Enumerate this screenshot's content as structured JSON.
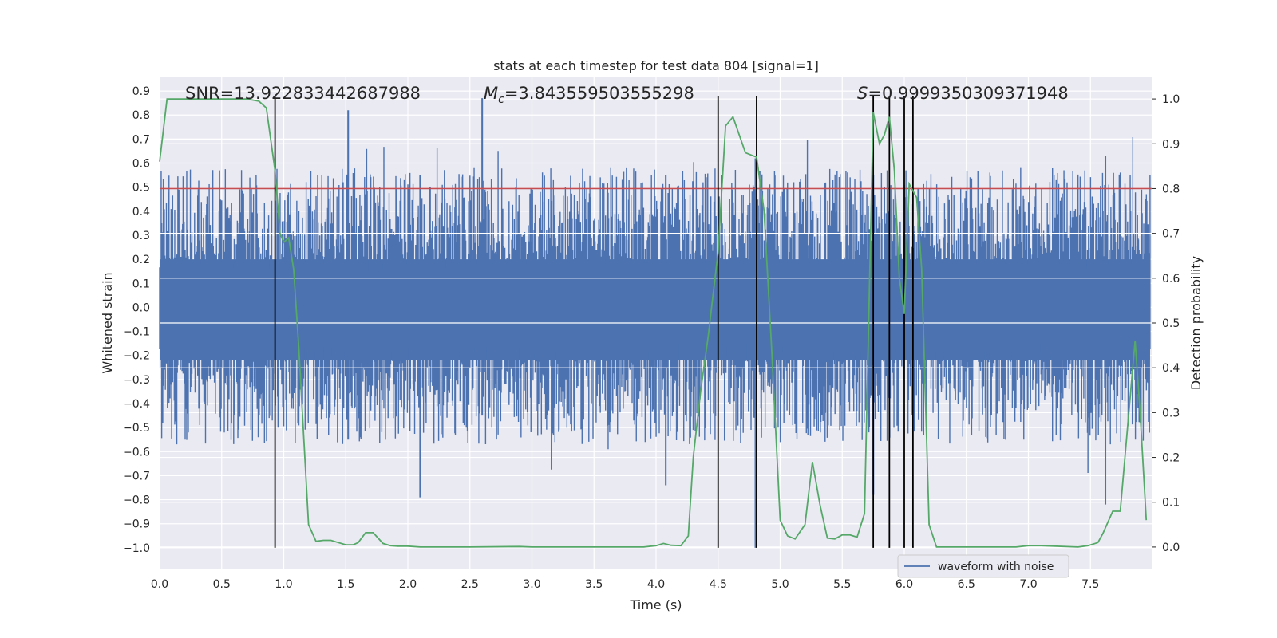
{
  "chart_data": {
    "type": "line",
    "title": "stats at each timestep for test data 804 [signal=1]",
    "xlabel": "Time (s)",
    "ylabel": "Whitened strain",
    "y2label": "Detection probability",
    "xlim": [
      0.0,
      8.0
    ],
    "ylim": [
      -1.09,
      0.96
    ],
    "y2lim": [
      -0.05,
      1.05
    ],
    "xticks": [
      "0.0",
      "0.5",
      "1.0",
      "1.5",
      "2.0",
      "2.5",
      "3.0",
      "3.5",
      "4.0",
      "4.5",
      "5.0",
      "5.5",
      "6.0",
      "6.5",
      "7.0",
      "7.5"
    ],
    "yticks": [
      "0.9",
      "0.8",
      "0.7",
      "0.6",
      "0.5",
      "0.4",
      "0.3",
      "0.2",
      "0.1",
      "0.0",
      "−0.1",
      "−0.2",
      "−0.3",
      "−0.4",
      "−0.5",
      "−0.6",
      "−0.7",
      "−0.8",
      "−0.9",
      "−1.0"
    ],
    "y2ticks": [
      "1.0",
      "0.9",
      "0.8",
      "0.7",
      "0.6",
      "0.5",
      "0.4",
      "0.3",
      "0.2",
      "0.1",
      "0.0"
    ],
    "grid": true,
    "legend_placement": "lower-right",
    "annotations": {
      "snr": "SNR=13.922833442687988",
      "mc_symbol": "M",
      "mc_sub": "c",
      "mc_value": "=3.843559503555298",
      "s_symbol": "S",
      "s_value": "=0.9999350309371948"
    },
    "threshold": {
      "axis": "right",
      "value": 0.8,
      "color": "#c44e52"
    },
    "vertical_markers": [
      0.93,
      4.5,
      4.81,
      5.75,
      5.88,
      6.0,
      6.07
    ],
    "vertical_marker_range": [
      -1.0,
      0.88
    ],
    "waveform_envelope_peaks": [
      {
        "x": 1.52,
        "top": 0.82,
        "bottom": -0.55
      },
      {
        "x": 2.1,
        "top": 0.55,
        "bottom": -0.79
      },
      {
        "x": 2.6,
        "top": 0.87,
        "bottom": -0.45
      },
      {
        "x": 4.08,
        "top": 0.55,
        "bottom": -0.74
      },
      {
        "x": 4.8,
        "top": 0.62,
        "bottom": -1.0
      },
      {
        "x": 5.75,
        "top": 0.55,
        "bottom": -0.78
      },
      {
        "x": 7.62,
        "top": 0.63,
        "bottom": -0.82
      }
    ],
    "series": [
      {
        "name": "waveform with noise",
        "axis": "left",
        "color": "#4c72b0",
        "typical_range": [
          -0.45,
          0.5
        ]
      },
      {
        "axis": "right",
        "color": "#55a868",
        "x": [
          0.0,
          0.06,
          0.12,
          0.2,
          0.3,
          0.4,
          0.5,
          0.6,
          0.7,
          0.8,
          0.86,
          0.93,
          0.97,
          1.0,
          1.04,
          1.08,
          1.12,
          1.2,
          1.26,
          1.32,
          1.38,
          1.44,
          1.5,
          1.56,
          1.6,
          1.66,
          1.72,
          1.8,
          1.86,
          1.92,
          2.0,
          2.1,
          2.5,
          2.9,
          3.0,
          3.5,
          3.9,
          4.0,
          4.06,
          4.12,
          4.2,
          4.26,
          4.3,
          4.36,
          4.42,
          4.5,
          4.56,
          4.62,
          4.72,
          4.81,
          4.87,
          4.93,
          5.0,
          5.06,
          5.12,
          5.2,
          5.26,
          5.32,
          5.38,
          5.44,
          5.5,
          5.56,
          5.62,
          5.68,
          5.75,
          5.8,
          5.84,
          5.88,
          5.92,
          5.96,
          6.0,
          6.04,
          6.1,
          6.14,
          6.2,
          6.26,
          6.34,
          6.5,
          6.9,
          7.0,
          7.1,
          7.4,
          7.48,
          7.56,
          7.6,
          7.68,
          7.74,
          7.8,
          7.86,
          7.9,
          7.95
        ],
        "values": [
          0.86,
          1.0,
          1.0,
          1.0,
          1.0,
          1.0,
          1.0,
          1.0,
          1.0,
          0.995,
          0.98,
          0.84,
          0.7,
          0.68,
          0.69,
          0.62,
          0.45,
          0.05,
          0.013,
          0.015,
          0.015,
          0.01,
          0.005,
          0.005,
          0.01,
          0.032,
          0.032,
          0.008,
          0.003,
          0.002,
          0.002,
          0.0,
          0.0,
          0.001,
          0.0,
          0.0,
          0.0,
          0.003,
          0.008,
          0.004,
          0.003,
          0.025,
          0.2,
          0.35,
          0.47,
          0.66,
          0.94,
          0.96,
          0.88,
          0.87,
          0.75,
          0.45,
          0.06,
          0.025,
          0.018,
          0.05,
          0.19,
          0.095,
          0.02,
          0.018,
          0.027,
          0.027,
          0.022,
          0.075,
          0.97,
          0.9,
          0.92,
          0.96,
          0.84,
          0.6,
          0.52,
          0.81,
          0.78,
          0.62,
          0.05,
          0.0,
          0.0,
          0.0,
          0.0,
          0.003,
          0.003,
          0.0,
          0.003,
          0.01,
          0.03,
          0.08,
          0.08,
          0.27,
          0.46,
          0.3,
          0.06
        ]
      }
    ]
  }
}
